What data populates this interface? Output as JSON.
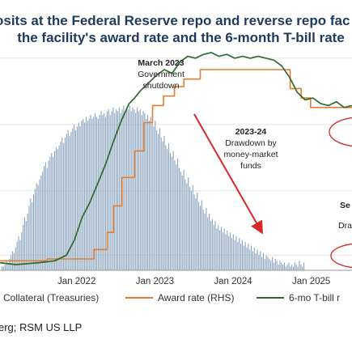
{
  "title": {
    "line1": "osits at the Federal Reserve repo and reverse repo fac",
    "line2": "the facility's award rate and the 6-month T-bill rate"
  },
  "source": "erg; RSM US LLP",
  "chart_data": {
    "type": "bar",
    "x_ticks": [
      "Jan 2022",
      "Jan 2023",
      "Jan 2024",
      "Jan 2025"
    ],
    "legend": [
      {
        "label": "Collateral (Treasuries)",
        "color": "#8aa4c0"
      },
      {
        "label": "Award rate (RHS)",
        "color": "#e07f34"
      },
      {
        "label": "6-mo T-bill r",
        "color": "#2e6b2b"
      }
    ],
    "annotations": [
      {
        "id": "march-2023",
        "lines": [
          "March 2023",
          "Government",
          "shutdown"
        ],
        "bold_first": true
      },
      {
        "id": "drawdown",
        "lines": [
          "2023-24",
          "Drawdown by",
          "money-market",
          "funds"
        ],
        "bold_first": true
      },
      {
        "id": "right-partial",
        "lines": [
          "Se",
          "Dra"
        ],
        "bold_first": true
      }
    ],
    "series": [
      {
        "name": "Collateral (Treasuries)",
        "kind": "bars",
        "start": 2021.02,
        "step": 0.0192,
        "values": [
          0.02,
          0.02,
          0.03,
          0.05,
          0.04,
          0.06,
          0.08,
          0.1,
          0.09,
          0.12,
          0.15,
          0.18,
          0.16,
          0.2,
          0.24,
          0.28,
          0.26,
          0.3,
          0.34,
          0.38,
          0.36,
          0.4,
          0.43,
          0.46,
          0.45,
          0.48,
          0.5,
          0.52,
          0.55,
          0.57,
          0.54,
          0.58,
          0.6,
          0.62,
          0.6,
          0.63,
          0.65,
          0.64,
          0.66,
          0.68,
          0.7,
          0.67,
          0.7,
          0.72,
          0.74,
          0.71,
          0.73,
          0.75,
          0.77,
          0.74,
          0.76,
          0.78,
          0.76,
          0.79,
          0.8,
          0.78,
          0.81,
          0.79,
          0.8,
          0.82,
          0.8,
          0.81,
          0.83,
          0.81,
          0.8,
          0.82,
          0.84,
          0.82,
          0.83,
          0.81,
          0.84,
          0.85,
          0.82,
          0.84,
          0.86,
          0.83,
          0.85,
          0.84,
          0.86,
          0.83,
          0.85,
          0.87,
          0.84,
          0.86,
          0.85,
          0.87,
          0.84,
          0.86,
          0.85,
          0.83,
          0.86,
          0.84,
          0.85,
          0.82,
          0.84,
          0.83,
          0.8,
          0.82,
          0.79,
          0.81,
          0.78,
          0.76,
          0.79,
          0.74,
          0.72,
          0.75,
          0.7,
          0.68,
          0.71,
          0.66,
          0.64,
          0.67,
          0.62,
          0.6,
          0.63,
          0.58,
          0.56,
          0.59,
          0.54,
          0.52,
          0.5,
          0.53,
          0.48,
          0.46,
          0.49,
          0.44,
          0.42,
          0.45,
          0.4,
          0.38,
          0.41,
          0.36,
          0.34,
          0.37,
          0.32,
          0.3,
          0.33,
          0.28,
          0.3,
          0.26,
          0.27,
          0.24,
          0.26,
          0.22,
          0.24,
          0.21,
          0.23,
          0.2,
          0.22,
          0.19,
          0.21,
          0.18,
          0.2,
          0.17,
          0.19,
          0.16,
          0.18,
          0.15,
          0.17,
          0.14,
          0.16,
          0.13,
          0.15,
          0.12,
          0.14,
          0.11,
          0.13,
          0.1,
          0.12,
          0.09,
          0.11,
          0.08,
          0.1,
          0.07,
          0.09,
          0.06,
          0.08,
          0.07,
          0.06,
          0.05,
          0.07,
          0.04,
          0.06,
          0.05,
          0.03,
          0.05,
          0.04,
          0.03,
          0.04,
          0.02,
          0.03,
          0.04,
          0.02,
          0.03,
          0.02,
          0.04,
          0.03,
          0.02,
          0.05,
          0.03,
          0.02,
          0.04
        ]
      },
      {
        "name": "Award rate (RHS)",
        "kind": "step",
        "points": [
          [
            2021.0,
            0.05
          ],
          [
            2021.6,
            0.05
          ],
          [
            2021.6,
            0.06
          ],
          [
            2022.2,
            0.06
          ],
          [
            2022.2,
            0.11
          ],
          [
            2022.37,
            0.11
          ],
          [
            2022.37,
            0.2
          ],
          [
            2022.45,
            0.2
          ],
          [
            2022.45,
            0.34
          ],
          [
            2022.56,
            0.34
          ],
          [
            2022.56,
            0.49
          ],
          [
            2022.72,
            0.49
          ],
          [
            2022.72,
            0.63
          ],
          [
            2022.84,
            0.63
          ],
          [
            2022.84,
            0.78
          ],
          [
            2022.95,
            0.78
          ],
          [
            2022.95,
            0.87
          ],
          [
            2023.09,
            0.87
          ],
          [
            2023.09,
            0.92
          ],
          [
            2023.23,
            0.92
          ],
          [
            2023.23,
            0.97
          ],
          [
            2023.35,
            0.97
          ],
          [
            2023.35,
            1.01
          ],
          [
            2023.56,
            1.01
          ],
          [
            2023.56,
            1.06
          ],
          [
            2024.71,
            1.06
          ],
          [
            2024.71,
            0.96
          ],
          [
            2024.85,
            0.96
          ],
          [
            2024.85,
            0.91
          ],
          [
            2024.97,
            0.91
          ],
          [
            2024.97,
            0.86
          ],
          [
            2025.5,
            0.86
          ]
        ]
      },
      {
        "name": "6-mo T-bill r",
        "kind": "line",
        "points": [
          [
            2021.0,
            0.04
          ],
          [
            2021.2,
            0.03
          ],
          [
            2021.5,
            0.04
          ],
          [
            2021.7,
            0.05
          ],
          [
            2021.85,
            0.08
          ],
          [
            2021.95,
            0.16
          ],
          [
            2022.05,
            0.28
          ],
          [
            2022.15,
            0.36
          ],
          [
            2022.25,
            0.46
          ],
          [
            2022.35,
            0.56
          ],
          [
            2022.45,
            0.68
          ],
          [
            2022.55,
            0.79
          ],
          [
            2022.65,
            0.88
          ],
          [
            2022.72,
            0.91
          ],
          [
            2022.8,
            0.95
          ],
          [
            2022.9,
            0.99
          ],
          [
            2023.0,
            1.03
          ],
          [
            2023.1,
            1.06
          ],
          [
            2023.2,
            1.04
          ],
          [
            2023.3,
            1.1
          ],
          [
            2023.4,
            1.13
          ],
          [
            2023.5,
            1.12
          ],
          [
            2023.6,
            1.14
          ],
          [
            2023.7,
            1.15
          ],
          [
            2023.8,
            1.13
          ],
          [
            2023.9,
            1.14
          ],
          [
            2024.0,
            1.12
          ],
          [
            2024.1,
            1.13
          ],
          [
            2024.2,
            1.12
          ],
          [
            2024.3,
            1.13
          ],
          [
            2024.4,
            1.12
          ],
          [
            2024.5,
            1.11
          ],
          [
            2024.6,
            1.08
          ],
          [
            2024.7,
            1.02
          ],
          [
            2024.8,
            0.94
          ],
          [
            2024.9,
            0.9
          ],
          [
            2025.0,
            0.91
          ],
          [
            2025.1,
            0.88
          ],
          [
            2025.2,
            0.87
          ],
          [
            2025.3,
            0.89
          ],
          [
            2025.4,
            0.86
          ],
          [
            2025.5,
            0.87
          ]
        ]
      }
    ]
  }
}
